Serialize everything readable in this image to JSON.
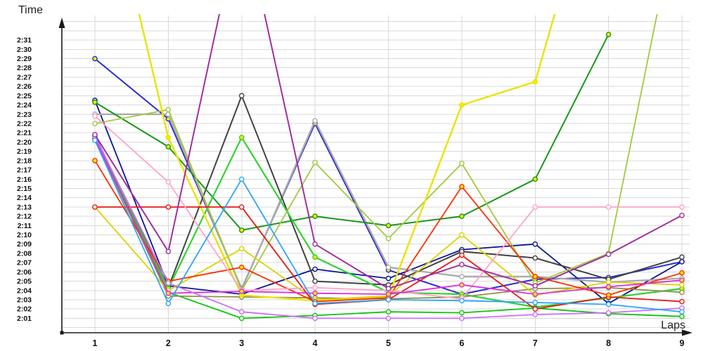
{
  "axes": {
    "y_title": "Time",
    "x_title": "Laps",
    "y_ticks": [
      "2:31",
      "2:30",
      "2:29",
      "2:28",
      "2:27",
      "2:26",
      "2:25",
      "2:24",
      "2:23",
      "2:22",
      "2:21",
      "2:20",
      "2:19",
      "2:18",
      "2:17",
      "2:16",
      "2:15",
      "2:14",
      "2:13",
      "2:12",
      "2:11",
      "2:10",
      "2:09",
      "2:08",
      "2:07",
      "2:06",
      "2:05",
      "2:04",
      "2:03",
      "2:02",
      "2:01"
    ],
    "x_ticks": [
      "1",
      "2",
      "3",
      "4",
      "5",
      "6",
      "7",
      "8",
      "9"
    ]
  },
  "layout": {
    "background_color": "#ffffff",
    "grid_color": "#d8d8d8",
    "axis_color": "#1a1a1a",
    "marker_yellow_fill": "#ffe800",
    "marker_open_fill": "#ffffff"
  },
  "chart_data": {
    "type": "line",
    "title": "",
    "xlabel": "Laps",
    "ylabel": "Time",
    "x": [
      1,
      2,
      3,
      4,
      5,
      6,
      7,
      8,
      9
    ],
    "y_axis": {
      "tick_min": "2:01",
      "tick_max": "2:31",
      "tick_step_seconds": 1,
      "grid": true,
      "values_unit": "seconds past 2:00 (e.g. 22.5 = 2:22.5); values > 33 exit the visible plot"
    },
    "legend": "none",
    "series": [
      {
        "id": "royal-blue",
        "color": "#2b2bd6",
        "width": 2.0,
        "marker": "yellow",
        "sec_past_2min": [
          29,
          22.5,
          4.2,
          22,
          6.2,
          3.6,
          5.2,
          5.4,
          7.1
        ]
      },
      {
        "id": "navy",
        "color": "#0b1696",
        "width": 1.8,
        "marker": "open",
        "sec_past_2min": [
          24.5,
          4.5,
          3.6,
          6.3,
          5.3,
          8.4,
          9,
          2.6,
          7.1
        ]
      },
      {
        "id": "silver",
        "color": "#ababab",
        "width": 2.4,
        "marker": "open",
        "sec_past_2min": [
          23,
          23,
          4.1,
          22.3,
          6.5,
          5.5,
          5.5,
          4.9,
          5.3
        ]
      },
      {
        "id": "dark-gray",
        "color": "#424242",
        "width": 2.0,
        "marker": "open",
        "sec_past_2min": [
          20.7,
          4.3,
          25,
          5,
          4.6,
          8.2,
          7.5,
          5.2,
          7.6
        ]
      },
      {
        "id": "forest-green",
        "color": "#189718",
        "width": 2.0,
        "marker": "yellow",
        "sec_past_2min": [
          24.3,
          19.5,
          10.5,
          12,
          11,
          12,
          16,
          31.6,
          null
        ]
      },
      {
        "id": "bright-green",
        "color": "#2fd32f",
        "width": 2.2,
        "marker": "yellow",
        "sec_past_2min": [
          20.5,
          4.2,
          20.5,
          7.6,
          3.8,
          3.6,
          2.2,
          3.2,
          4.2
        ]
      },
      {
        "id": "green-low",
        "color": "#0cc50c",
        "width": 1.8,
        "marker": "open",
        "sec_past_2min": [
          20.5,
          3.8,
          1,
          1.3,
          1.7,
          1.6,
          2.1,
          1.5,
          1.2
        ]
      },
      {
        "id": "yellow-green",
        "color": "#a3c83c",
        "width": 1.8,
        "marker": "open",
        "sec_past_2min": [
          22,
          23.5,
          4,
          17.8,
          9.6,
          17.7,
          4.8,
          8,
          47
        ]
      },
      {
        "id": "olive",
        "color": "#8e9045",
        "width": 1.8,
        "marker": "open",
        "sec_past_2min": [
          20.3,
          3.4,
          3.3,
          3.2,
          3.1,
          3.3,
          4.2,
          4.3,
          3.8
        ]
      },
      {
        "id": "yellow-bright",
        "color": "#e8e400",
        "width": 2.4,
        "marker": "yellow",
        "sec_past_2min": [
          54,
          20.5,
          3.5,
          2.9,
          3.3,
          24,
          26.5,
          54,
          null
        ]
      },
      {
        "id": "yellow-dark",
        "color": "#d8d400",
        "width": 1.8,
        "marker": "open",
        "sec_past_2min": [
          13,
          4,
          8.5,
          3,
          3.4,
          10,
          3.5,
          4.9,
          4.6
        ]
      },
      {
        "id": "red",
        "color": "#e61717",
        "width": 1.8,
        "marker": "open",
        "sec_past_2min": [
          13,
          13,
          13,
          2.5,
          3,
          7.8,
          2,
          3.3,
          2.8
        ]
      },
      {
        "id": "orange-red",
        "color": "#ff2e00",
        "width": 1.8,
        "marker": "yellow",
        "sec_past_2min": [
          18,
          5,
          6.5,
          2.8,
          3.2,
          15.2,
          5.5,
          3.5,
          5.9
        ]
      },
      {
        "id": "pink",
        "color": "#ffa3c8",
        "width": 1.8,
        "marker": "open",
        "sec_past_2min": [
          22.8,
          15.7,
          4,
          4.3,
          4,
          3.1,
          13,
          13,
          13
        ]
      },
      {
        "id": "magenta",
        "color": "#df2cdf",
        "width": 1.8,
        "marker": "yellow",
        "sec_past_2min": [
          20.4,
          3.7,
          3.9,
          3.7,
          3.6,
          4.6,
          3.6,
          4.4,
          5.1
        ]
      },
      {
        "id": "orchid",
        "color": "#cf6cfc",
        "width": 1.8,
        "marker": "open",
        "sec_past_2min": [
          20.6,
          4.8,
          1.7,
          1,
          1,
          1,
          1.4,
          1.6,
          2.1
        ]
      },
      {
        "id": "purple",
        "color": "#a0309f",
        "width": 2.0,
        "marker": "open",
        "sec_past_2min": [
          20.8,
          8.2,
          45,
          9,
          4.2,
          6.8,
          4.5,
          7.9,
          12.1
        ]
      },
      {
        "id": "sky-blue",
        "color": "#2da4ff",
        "width": 1.8,
        "marker": "open",
        "sec_past_2min": [
          20.2,
          2.6,
          16,
          2.6,
          3,
          2.9,
          2.7,
          2.5,
          1.7
        ]
      }
    ]
  }
}
